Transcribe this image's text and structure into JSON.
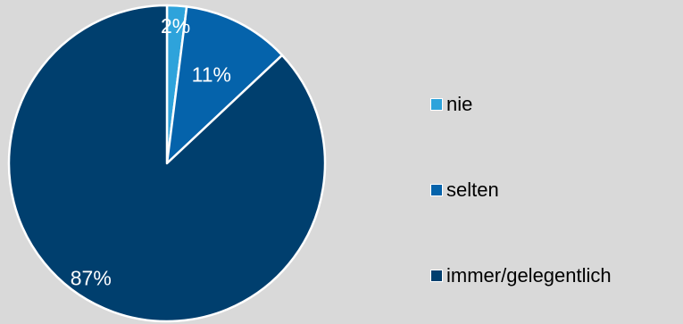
{
  "chart_data": {
    "type": "pie",
    "categories": [
      "nie",
      "selten",
      "immer/gelegentlich"
    ],
    "values": [
      2,
      11,
      87
    ],
    "data_labels": [
      "2%",
      "11%",
      "87%"
    ],
    "colors": [
      "#2ea3db",
      "#0563ab",
      "#003f6e"
    ],
    "legend_position": "right"
  }
}
